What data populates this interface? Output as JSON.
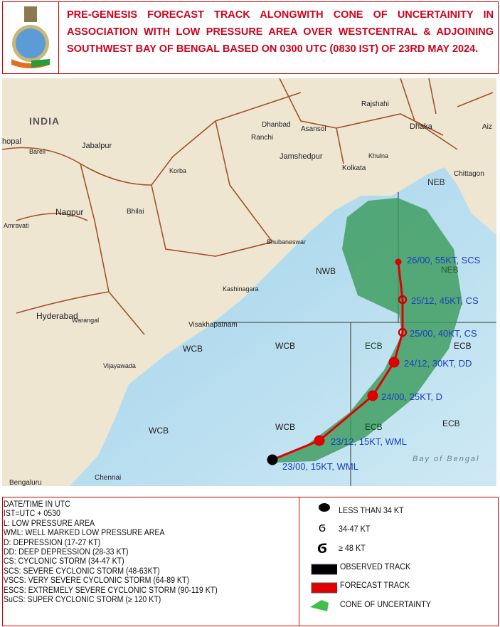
{
  "header": {
    "title_lines": [
      "PRE-GENESIS FORECAST TRACK ALONGWITH CONE OF UNCERTAINITY IN",
      "ASSOCIATION WITH LOW PRESSURE AREA OVER WESTCENTRAL & ADJOINING",
      "SOUTHWEST BAY OF BENGAL BASED ON 0300 UTC (0830 IST) OF 23RD MAY 2024."
    ],
    "logo": "imd-emblem"
  },
  "map": {
    "places": [
      "INDIA",
      "hopal",
      "Bareli",
      "Jabalpur",
      "Dhanbad",
      "Asansol",
      "Ranchi",
      "Jamshedpur",
      "Rajshahi",
      "Dhaka",
      "Aiz",
      "Khulna",
      "Kolkata",
      "Chittagon",
      "Korba",
      "Nagpur",
      "Bhilai",
      "Amravati",
      "Bhubaneswar",
      "Kashinagara",
      "Warangal",
      "Hyderabad",
      "Visakhapatnam",
      "Vijayawada",
      "Chennai",
      "Bengaluru",
      "Bay of Bengal"
    ],
    "regions": [
      "NEB",
      "NWB",
      "NEB",
      "WCB",
      "WCB",
      "ECB",
      "ECB",
      "WCB",
      "WCB",
      "ECB",
      "ECB"
    ],
    "track": [
      {
        "label": "23/00, 15KT, WML",
        "type": "observed"
      },
      {
        "label": "23/12, 15KT, WML",
        "type": "forecast"
      },
      {
        "label": "24/00, 25KT, D",
        "type": "forecast"
      },
      {
        "label": "24/12, 30KT, DD",
        "type": "forecast"
      },
      {
        "label": "25/00, 40KT, CS",
        "type": "forecast"
      },
      {
        "label": "25/12, 45KT, CS",
        "type": "forecast"
      },
      {
        "label": "26/00, 55KT, SCS",
        "type": "forecast"
      }
    ],
    "colors": {
      "land": "#efe6d2",
      "sea": "#bfe1ef",
      "cone": "#3a9a5a",
      "track": "#e00000",
      "label": "#1a3fbf",
      "border": "#a0522d"
    }
  },
  "legend": {
    "definitions": [
      "DATE/TIME IN UTC",
      "IST=UTC + 0530",
      "L: LOW PRESSURE AREA",
      "WML: WELL MARKED LOW PRESSURE AREA",
      "D: DEPRESSION (17-27 KT)",
      "DD: DEEP DEPRESSION (28-33 KT)",
      "CS: CYCLONIC STORM (34-47 KT)",
      "SCS: SEVERE CYCLONIC STORM (48-63KT)",
      "VSCS: VERY SEVERE CYCLONIC STORM (64-89 KT)",
      "ESCS: EXTREMELY SEVERE CYCLONIC STORM (90-119 KT)",
      "SuCS: SUPER CYCLONIC STORM (≥ 120 KT)"
    ],
    "symbols": [
      {
        "icon": "black-dot-icon",
        "label": "LESS THAN 34 KT"
      },
      {
        "icon": "cyclone-small-icon",
        "label": "34-47 KT"
      },
      {
        "icon": "cyclone-large-icon",
        "label": "≥ 48 KT"
      },
      {
        "icon": "black-box-icon",
        "label": "OBSERVED TRACK"
      },
      {
        "icon": "red-box-icon",
        "label": "FORECAST TRACK"
      },
      {
        "icon": "green-cone-icon",
        "label": "CONE OF UNCERTAINTY"
      }
    ]
  }
}
